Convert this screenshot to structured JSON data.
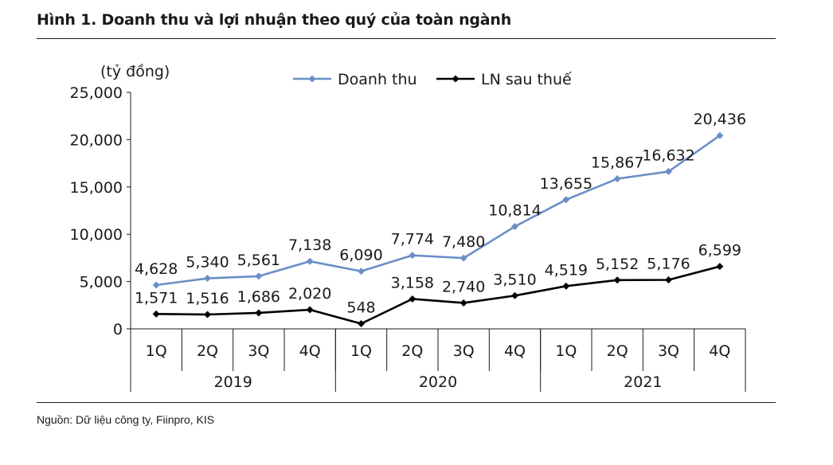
{
  "figure": {
    "title": "Hình 1. Doanh thu và lợi nhuận theo quý của toàn ngành",
    "source": "Nguồn: Dữ liệu công ty, Fiinpro, KIS"
  },
  "chart_data": {
    "type": "line",
    "title": "",
    "unit_label": "(tỷ đồng)",
    "xlabel": "",
    "ylabel": "",
    "ylim": [
      0,
      25000
    ],
    "yticks": [
      0,
      5000,
      10000,
      15000,
      20000,
      25000
    ],
    "ytick_labels": [
      "0",
      "5,000",
      "10,000",
      "15,000",
      "20,000",
      "25,000"
    ],
    "categories": [
      "1Q",
      "2Q",
      "3Q",
      "4Q",
      "1Q",
      "2Q",
      "3Q",
      "4Q",
      "1Q",
      "2Q",
      "3Q",
      "4Q"
    ],
    "groups": [
      {
        "label": "2019",
        "count": 4
      },
      {
        "label": "2020",
        "count": 4
      },
      {
        "label": "2021",
        "count": 4
      }
    ],
    "grid": false,
    "legend_position": "top-center",
    "series": [
      {
        "name": "Doanh thu",
        "color": "#6a8fc7",
        "marker": "diamond",
        "values": [
          4628,
          5340,
          5561,
          7138,
          6090,
          7774,
          7480,
          10814,
          13655,
          15867,
          16632,
          20436
        ],
        "labels": [
          "4,628",
          "5,340",
          "5,561",
          "7,138",
          "6,090",
          "7,774",
          "7,480",
          "10,814",
          "13,655",
          "15,867",
          "16,632",
          "20,436"
        ]
      },
      {
        "name": "LN sau thuế",
        "color": "#000000",
        "marker": "diamond",
        "values": [
          1571,
          1516,
          1686,
          2020,
          548,
          3158,
          2740,
          3510,
          4519,
          5152,
          5176,
          6599
        ],
        "labels": [
          "1,571",
          "1,516",
          "1,686",
          "2,020",
          "548",
          "3,158",
          "2,740",
          "3,510",
          "4,519",
          "5,152",
          "5,176",
          "6,599"
        ]
      }
    ]
  }
}
